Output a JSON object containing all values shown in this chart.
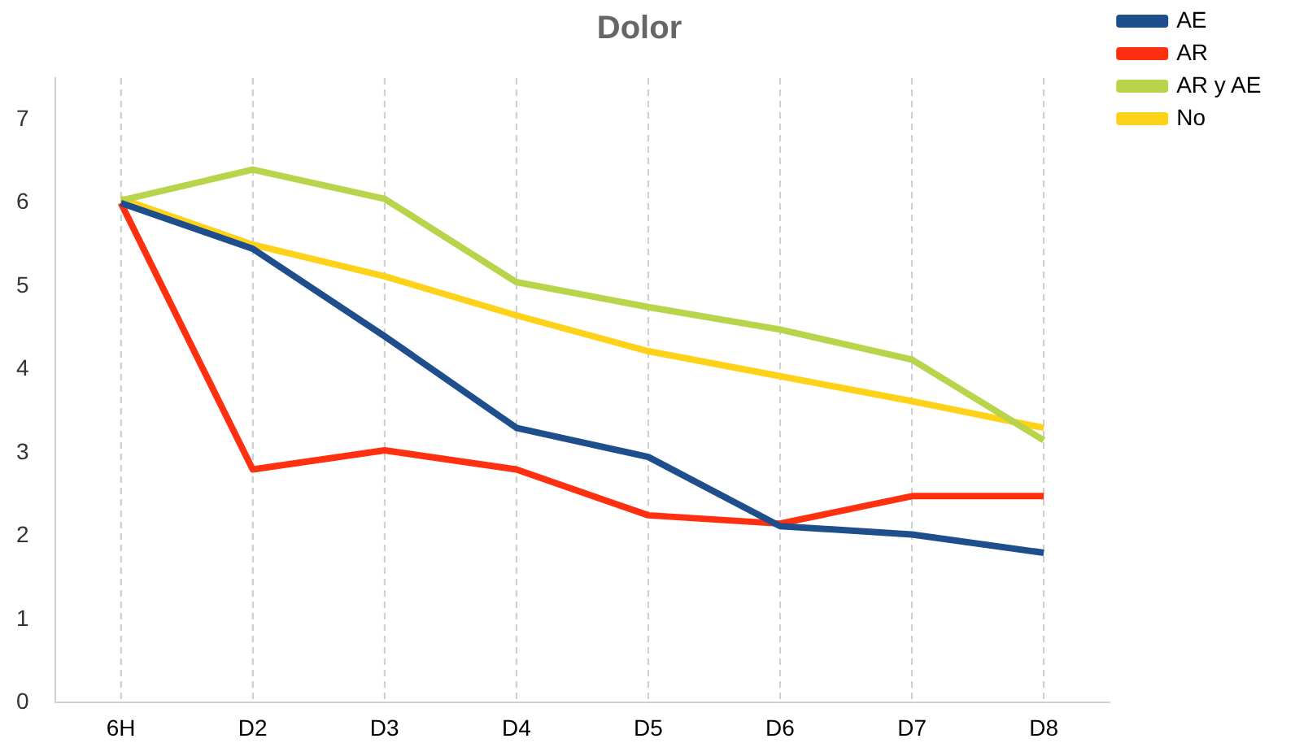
{
  "chart_data": {
    "type": "line",
    "title": "Dolor",
    "categories": [
      "6H",
      "D2",
      "D3",
      "D4",
      "D5",
      "D6",
      "D7",
      "D8"
    ],
    "series": [
      {
        "name": "AE",
        "color": "#1f4e8c",
        "values": [
          6.0,
          5.45,
          4.4,
          3.3,
          2.95,
          2.12,
          2.02,
          1.8
        ]
      },
      {
        "name": "AR",
        "color": "#ff3010",
        "values": [
          6.0,
          2.8,
          3.03,
          2.8,
          2.25,
          2.15,
          2.48,
          2.48
        ]
      },
      {
        "name": "AR y AE",
        "color": "#b8d44a",
        "values": [
          6.03,
          6.4,
          6.05,
          5.05,
          4.75,
          4.48,
          4.12,
          3.15
        ]
      },
      {
        "name": "No",
        "color": "#ffd21a",
        "values": [
          6.05,
          5.5,
          5.12,
          4.65,
          4.22,
          3.92,
          3.62,
          3.3
        ]
      }
    ],
    "ylim": [
      0,
      7.5
    ],
    "yticks": [
      0,
      1,
      2,
      3,
      4,
      5,
      6,
      7
    ],
    "grid": "x",
    "legend": "top right",
    "marker": "none",
    "line_style": "solid"
  }
}
